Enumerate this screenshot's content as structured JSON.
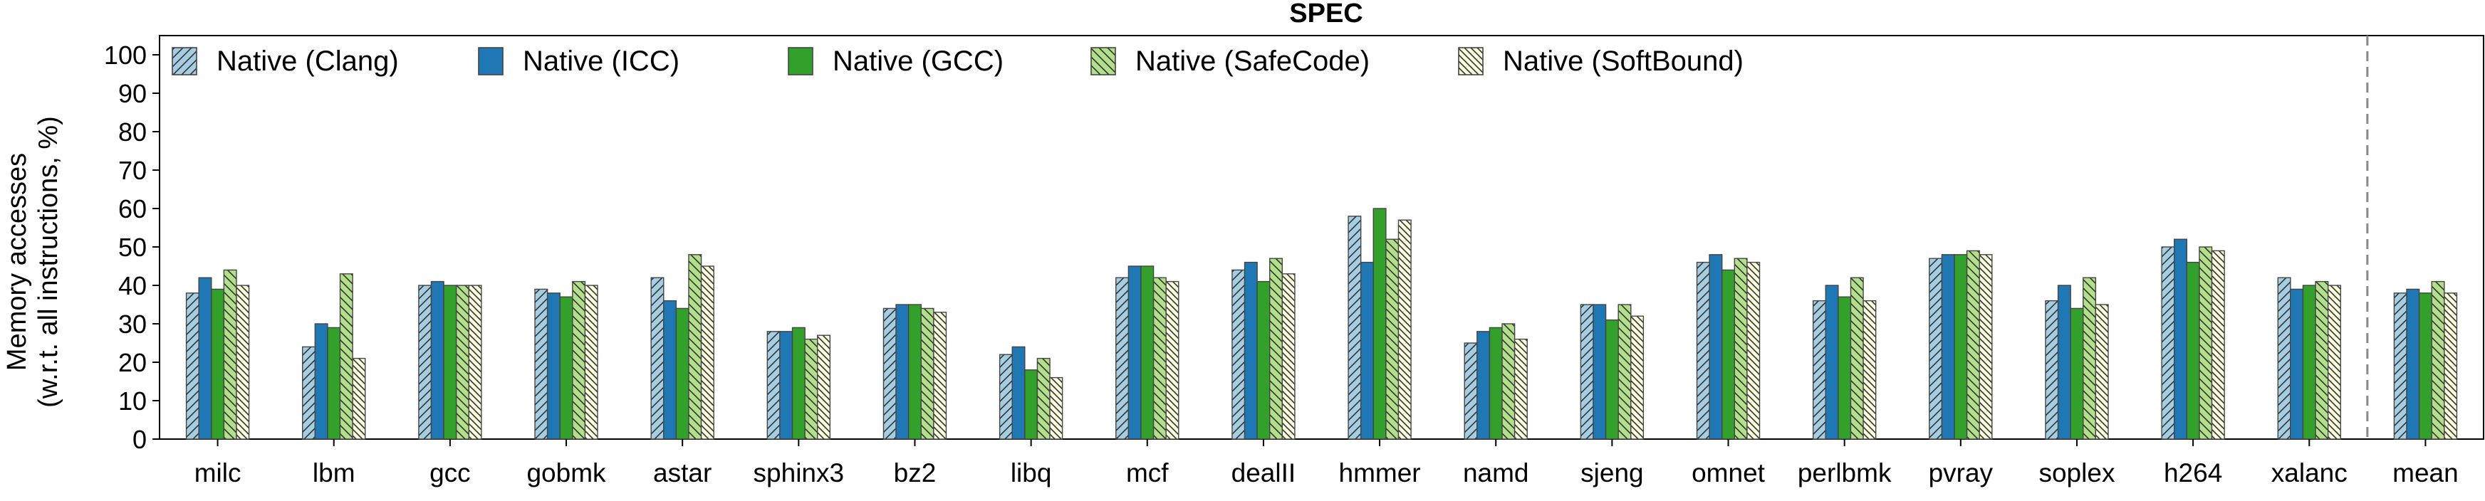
{
  "chart_data": {
    "type": "bar",
    "title": "SPEC",
    "xlabel": "",
    "ylabel": "Memory accesses",
    "ylabel2": "(w.r.t. all instructions, %)",
    "ylim": [
      0,
      105
    ],
    "yticks": [
      0,
      10,
      20,
      30,
      40,
      50,
      60,
      70,
      80,
      90,
      100
    ],
    "grid": false,
    "legend_position": "top-left",
    "separator_before": "mean",
    "categories": [
      "milc",
      "lbm",
      "gcc",
      "gobmk",
      "astar",
      "sphinx3",
      "bz2",
      "libq",
      "mcf",
      "dealII",
      "hmmer",
      "namd",
      "sjeng",
      "omnet",
      "perlbmk",
      "pvray",
      "soplex",
      "h264",
      "xalanc",
      "mean"
    ],
    "series": [
      {
        "name": "Native (Clang)",
        "color": "#a6cee3",
        "pattern": "hatch-right",
        "values": [
          38,
          24,
          40,
          39,
          42,
          28,
          34,
          22,
          42,
          44,
          58,
          25,
          35,
          46,
          36,
          47,
          36,
          50,
          42,
          38
        ]
      },
      {
        "name": "Native (ICC)",
        "color": "#1f78b4",
        "pattern": "solid",
        "values": [
          42,
          30,
          41,
          38,
          36,
          28,
          35,
          24,
          45,
          46,
          46,
          28,
          35,
          48,
          40,
          48,
          40,
          52,
          39,
          39
        ]
      },
      {
        "name": "Native (GCC)",
        "color": "#33a02c",
        "pattern": "solid",
        "values": [
          39,
          29,
          40,
          37,
          34,
          29,
          35,
          18,
          45,
          41,
          60,
          29,
          31,
          44,
          37,
          48,
          34,
          46,
          40,
          38
        ]
      },
      {
        "name": "Native (SafeCode)",
        "color": "#b2df8a",
        "pattern": "hatch-left",
        "values": [
          44,
          43,
          40,
          41,
          48,
          26,
          34,
          21,
          42,
          47,
          52,
          30,
          35,
          47,
          42,
          49,
          42,
          50,
          41,
          41
        ]
      },
      {
        "name": "Native (SoftBound)",
        "color": "#ffffe0",
        "pattern": "hatch-left-dense",
        "values": [
          40,
          21,
          40,
          40,
          45,
          27,
          33,
          16,
          41,
          43,
          57,
          26,
          32,
          46,
          36,
          48,
          35,
          49,
          40,
          38
        ]
      }
    ]
  }
}
